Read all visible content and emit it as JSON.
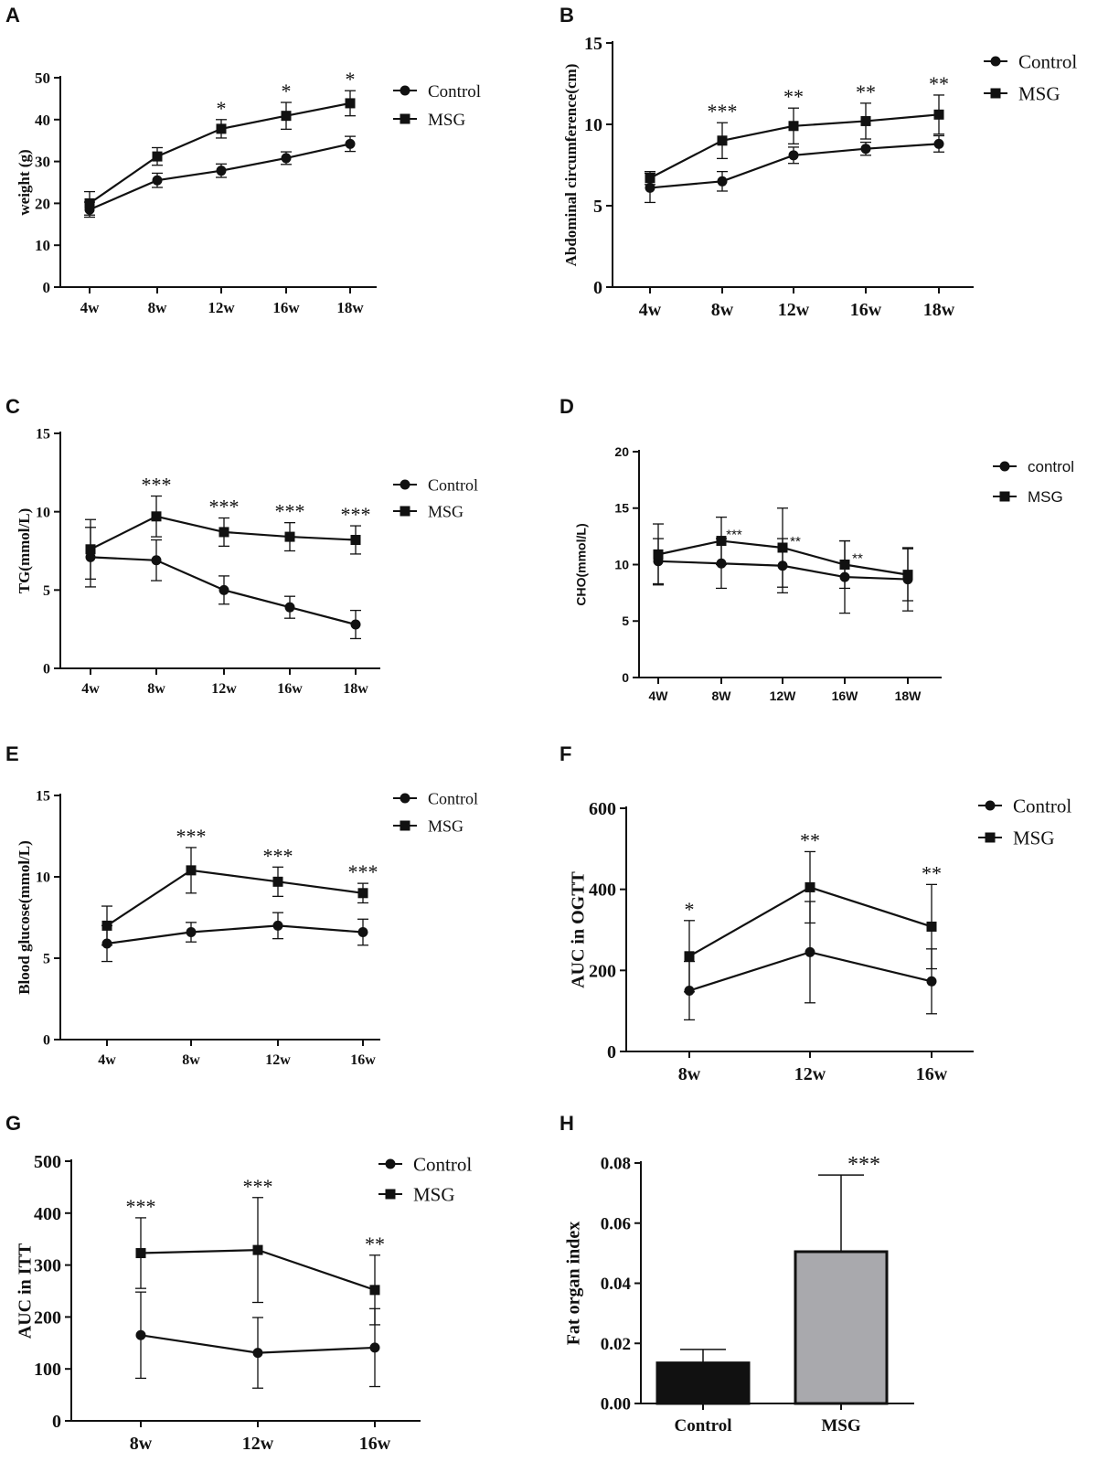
{
  "chart_data": [
    {
      "panel": "A",
      "type": "line",
      "ylabel": "weight (g)",
      "categories": [
        "4w",
        "8w",
        "12w",
        "16w",
        "18w"
      ],
      "ylim": [
        0,
        50
      ],
      "yticks": [
        0,
        10,
        20,
        30,
        40,
        50
      ],
      "series": [
        {
          "name": "Control",
          "marker": "circle",
          "values": [
            18.5,
            25.5,
            27.8,
            30.8,
            34.2
          ],
          "err": [
            1.8,
            1.7,
            1.6,
            1.5,
            1.8
          ]
        },
        {
          "name": "MSG",
          "marker": "square",
          "values": [
            20.0,
            31.2,
            37.8,
            40.9,
            43.9
          ],
          "err": [
            2.8,
            2.1,
            2.2,
            3.2,
            3.0
          ]
        }
      ],
      "significance": [
        "",
        "",
        "*",
        "*",
        "*"
      ],
      "style": {
        "font": "serif",
        "legend": "top-right"
      }
    },
    {
      "panel": "B",
      "type": "line",
      "ylabel": "Abdominal circumference(cm)",
      "categories": [
        "4w",
        "8w",
        "12w",
        "16w",
        "18w"
      ],
      "ylim": [
        0,
        15
      ],
      "yticks": [
        0,
        5,
        10,
        15
      ],
      "series": [
        {
          "name": "Control",
          "marker": "circle",
          "values": [
            6.1,
            6.5,
            8.1,
            8.5,
            8.8
          ],
          "err": [
            0.9,
            0.6,
            0.5,
            0.4,
            0.5
          ]
        },
        {
          "name": "MSG",
          "marker": "square",
          "values": [
            6.7,
            9.0,
            9.9,
            10.2,
            10.6
          ],
          "err": [
            0.4,
            1.1,
            1.1,
            1.1,
            1.2
          ]
        }
      ],
      "significance": [
        "",
        "***",
        "**",
        "**",
        "**"
      ],
      "style": {
        "font": "serif",
        "legend": "top-right"
      }
    },
    {
      "panel": "C",
      "type": "line",
      "ylabel": "TG(mmol/L)",
      "categories": [
        "4w",
        "8w",
        "12w",
        "16w",
        "18w"
      ],
      "ylim": [
        0,
        15
      ],
      "yticks": [
        0,
        5,
        10,
        15
      ],
      "series": [
        {
          "name": "Control",
          "marker": "circle",
          "values": [
            7.1,
            6.9,
            5.0,
            3.9,
            2.8
          ],
          "err": [
            1.9,
            1.3,
            0.9,
            0.7,
            0.9
          ]
        },
        {
          "name": "MSG",
          "marker": "square",
          "values": [
            7.6,
            9.7,
            8.7,
            8.4,
            8.2
          ],
          "err": [
            1.9,
            1.3,
            0.9,
            0.9,
            0.9
          ]
        }
      ],
      "significance": [
        "",
        "***",
        "***",
        "***",
        "***"
      ],
      "style": {
        "font": "serif",
        "legend": "top-right"
      }
    },
    {
      "panel": "D",
      "type": "line",
      "ylabel": "CHO(mmol/L)",
      "categories": [
        "4W",
        "8W",
        "12W",
        "16W",
        "18W"
      ],
      "ylim": [
        0,
        20
      ],
      "yticks": [
        0,
        5,
        10,
        15,
        20
      ],
      "series": [
        {
          "name": "control",
          "marker": "circle",
          "values": [
            10.3,
            10.1,
            9.9,
            8.9,
            8.7
          ],
          "err": [
            2.0,
            2.2,
            2.4,
            3.2,
            2.8
          ]
        },
        {
          "name": "MSG",
          "marker": "square",
          "values": [
            10.9,
            12.1,
            11.5,
            10.0,
            9.1
          ],
          "err": [
            2.7,
            2.1,
            3.5,
            2.1,
            2.3
          ]
        }
      ],
      "significance": [
        "",
        "***",
        "**",
        "**",
        ""
      ],
      "style": {
        "font": "sans",
        "legend": "top-right"
      }
    },
    {
      "panel": "E",
      "type": "line",
      "ylabel": "Blood glucose(mmol/L)",
      "categories": [
        "4w",
        "8w",
        "12w",
        "16w"
      ],
      "ylim": [
        0,
        15
      ],
      "yticks": [
        0,
        5,
        10,
        15
      ],
      "series": [
        {
          "name": "Control",
          "marker": "circle",
          "values": [
            5.9,
            6.6,
            7.0,
            6.6
          ],
          "err": [
            1.1,
            0.6,
            0.8,
            0.8
          ]
        },
        {
          "name": "MSG",
          "marker": "square",
          "values": [
            7.0,
            10.4,
            9.7,
            9.0
          ],
          "err": [
            1.2,
            1.4,
            0.9,
            0.6
          ]
        }
      ],
      "significance": [
        "",
        "***",
        "***",
        "***"
      ],
      "style": {
        "font": "serif",
        "legend": "top-right"
      }
    },
    {
      "panel": "F",
      "type": "line",
      "ylabel": "AUC in OGTT",
      "categories": [
        "8w",
        "12w",
        "16w"
      ],
      "ylim": [
        0,
        600
      ],
      "yticks": [
        0,
        200,
        400,
        600
      ],
      "series": [
        {
          "name": "Control",
          "marker": "circle",
          "values": [
            150,
            245,
            173
          ],
          "err": [
            72,
            125,
            80
          ]
        },
        {
          "name": "MSG",
          "marker": "square",
          "values": [
            235,
            405,
            308
          ],
          "err": [
            88,
            88,
            104
          ]
        }
      ],
      "significance": [
        "*",
        "**",
        "**"
      ],
      "style": {
        "font": "serif",
        "legend": "top-right"
      }
    },
    {
      "panel": "G",
      "type": "line",
      "ylabel": "AUC in ITT",
      "categories": [
        "8w",
        "12w",
        "16w"
      ],
      "ylim": [
        0,
        500
      ],
      "yticks": [
        0,
        100,
        200,
        300,
        400,
        500
      ],
      "series": [
        {
          "name": "Control",
          "marker": "circle",
          "values": [
            165,
            131,
            141
          ],
          "err": [
            83,
            68,
            75
          ]
        },
        {
          "name": "MSG",
          "marker": "square",
          "values": [
            323,
            329,
            252
          ],
          "err": [
            68,
            101,
            67
          ]
        }
      ],
      "significance": [
        "***",
        "***",
        "**"
      ],
      "style": {
        "font": "serif",
        "legend": "top-right"
      }
    },
    {
      "panel": "H",
      "type": "bar",
      "ylabel": "Fat organ index",
      "categories": [
        "Control",
        "MSG"
      ],
      "values": [
        0.0135,
        0.0505
      ],
      "err": [
        0.0045,
        0.0255
      ],
      "colors": [
        "#111111",
        "#a9a9ad"
      ],
      "ylim": [
        0,
        0.08
      ],
      "yticks": [
        "0.00",
        "0.02",
        "0.04",
        "0.06",
        "0.08"
      ],
      "significance": [
        "",
        "***"
      ],
      "style": {
        "font": "serif"
      }
    }
  ]
}
